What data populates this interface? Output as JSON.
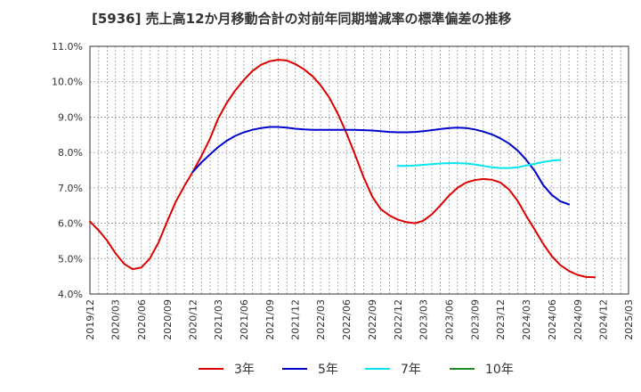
{
  "chart_data": {
    "type": "line",
    "title": "[5936]  売上高12か月移動合計の対前年同期増減率の標準偏差の推移",
    "ylim": [
      4.0,
      11.0
    ],
    "yticks": [
      "4.0%",
      "5.0%",
      "6.0%",
      "7.0%",
      "8.0%",
      "9.0%",
      "10.0%",
      "11.0%"
    ],
    "xticks": [
      "2019/12",
      "2020/03",
      "2020/06",
      "2020/09",
      "2020/12",
      "2021/03",
      "2021/06",
      "2021/09",
      "2021/12",
      "2022/03",
      "2022/06",
      "2022/09",
      "2022/12",
      "2023/03",
      "2023/06",
      "2023/09",
      "2023/12",
      "2024/03",
      "2024/06",
      "2024/09",
      "2024/12",
      "2025/03"
    ],
    "grid": true,
    "legend_position": "bottom",
    "series": [
      {
        "name": "3年",
        "color": "#dd0000",
        "points": [
          [
            "2019/12",
            6.05
          ],
          [
            "2020/01",
            5.8
          ],
          [
            "2020/02",
            5.5
          ],
          [
            "2020/03",
            5.15
          ],
          [
            "2020/04",
            4.85
          ],
          [
            "2020/05",
            4.7
          ],
          [
            "2020/06",
            4.75
          ],
          [
            "2020/07",
            5.0
          ],
          [
            "2020/08",
            5.45
          ],
          [
            "2020/09",
            6.05
          ],
          [
            "2020/10",
            6.6
          ],
          [
            "2020/11",
            7.05
          ],
          [
            "2020/12",
            7.45
          ],
          [
            "2021/01",
            7.9
          ],
          [
            "2021/02",
            8.4
          ],
          [
            "2021/03",
            8.95
          ],
          [
            "2021/04",
            9.4
          ],
          [
            "2021/05",
            9.75
          ],
          [
            "2021/06",
            10.05
          ],
          [
            "2021/07",
            10.3
          ],
          [
            "2021/08",
            10.48
          ],
          [
            "2021/09",
            10.58
          ],
          [
            "2021/10",
            10.62
          ],
          [
            "2021/11",
            10.6
          ],
          [
            "2021/12",
            10.5
          ],
          [
            "2022/01",
            10.35
          ],
          [
            "2022/02",
            10.15
          ],
          [
            "2022/03",
            9.9
          ],
          [
            "2022/04",
            9.55
          ],
          [
            "2022/05",
            9.1
          ],
          [
            "2022/06",
            8.55
          ],
          [
            "2022/07",
            7.95
          ],
          [
            "2022/08",
            7.3
          ],
          [
            "2022/09",
            6.75
          ],
          [
            "2022/10",
            6.4
          ],
          [
            "2022/11",
            6.22
          ],
          [
            "2022/12",
            6.1
          ],
          [
            "2023/01",
            6.03
          ],
          [
            "2023/02",
            6.0
          ],
          [
            "2023/03",
            6.07
          ],
          [
            "2023/04",
            6.25
          ],
          [
            "2023/05",
            6.5
          ],
          [
            "2023/06",
            6.78
          ],
          [
            "2023/07",
            7.0
          ],
          [
            "2023/08",
            7.15
          ],
          [
            "2023/09",
            7.22
          ],
          [
            "2023/10",
            7.25
          ],
          [
            "2023/11",
            7.23
          ],
          [
            "2023/12",
            7.15
          ],
          [
            "2024/01",
            6.95
          ],
          [
            "2024/02",
            6.62
          ],
          [
            "2024/03",
            6.22
          ],
          [
            "2024/04",
            5.82
          ],
          [
            "2024/05",
            5.42
          ],
          [
            "2024/06",
            5.07
          ],
          [
            "2024/07",
            4.82
          ],
          [
            "2024/08",
            4.65
          ],
          [
            "2024/09",
            4.54
          ],
          [
            "2024/10",
            4.48
          ],
          [
            "2024/11",
            4.47
          ]
        ]
      },
      {
        "name": "5年",
        "color": "#0000cc",
        "points": [
          [
            "2020/12",
            7.45
          ],
          [
            "2021/01",
            7.72
          ],
          [
            "2021/02",
            7.95
          ],
          [
            "2021/03",
            8.15
          ],
          [
            "2021/04",
            8.33
          ],
          [
            "2021/05",
            8.47
          ],
          [
            "2021/06",
            8.57
          ],
          [
            "2021/07",
            8.64
          ],
          [
            "2021/08",
            8.69
          ],
          [
            "2021/09",
            8.72
          ],
          [
            "2021/10",
            8.72
          ],
          [
            "2021/11",
            8.7
          ],
          [
            "2021/12",
            8.67
          ],
          [
            "2022/01",
            8.65
          ],
          [
            "2022/02",
            8.64
          ],
          [
            "2022/03",
            8.64
          ],
          [
            "2022/04",
            8.64
          ],
          [
            "2022/05",
            8.64
          ],
          [
            "2022/06",
            8.64
          ],
          [
            "2022/07",
            8.64
          ],
          [
            "2022/08",
            8.63
          ],
          [
            "2022/09",
            8.62
          ],
          [
            "2022/10",
            8.6
          ],
          [
            "2022/11",
            8.58
          ],
          [
            "2022/12",
            8.57
          ],
          [
            "2023/01",
            8.57
          ],
          [
            "2023/02",
            8.58
          ],
          [
            "2023/03",
            8.6
          ],
          [
            "2023/04",
            8.63
          ],
          [
            "2023/05",
            8.66
          ],
          [
            "2023/06",
            8.69
          ],
          [
            "2023/07",
            8.7
          ],
          [
            "2023/08",
            8.69
          ],
          [
            "2023/09",
            8.65
          ],
          [
            "2023/10",
            8.59
          ],
          [
            "2023/11",
            8.51
          ],
          [
            "2023/12",
            8.4
          ],
          [
            "2024/01",
            8.25
          ],
          [
            "2024/02",
            8.05
          ],
          [
            "2024/03",
            7.8
          ],
          [
            "2024/04",
            7.48
          ],
          [
            "2024/05",
            7.08
          ],
          [
            "2024/06",
            6.8
          ],
          [
            "2024/07",
            6.62
          ],
          [
            "2024/08",
            6.53
          ]
        ]
      },
      {
        "name": "7年",
        "color": "#00e5ee",
        "points": [
          [
            "2022/12",
            7.62
          ],
          [
            "2023/01",
            7.62
          ],
          [
            "2023/02",
            7.63
          ],
          [
            "2023/03",
            7.65
          ],
          [
            "2023/04",
            7.67
          ],
          [
            "2023/05",
            7.69
          ],
          [
            "2023/06",
            7.7
          ],
          [
            "2023/07",
            7.7
          ],
          [
            "2023/08",
            7.69
          ],
          [
            "2023/09",
            7.66
          ],
          [
            "2023/10",
            7.62
          ],
          [
            "2023/11",
            7.58
          ],
          [
            "2023/12",
            7.56
          ],
          [
            "2024/01",
            7.56
          ],
          [
            "2024/02",
            7.58
          ],
          [
            "2024/03",
            7.63
          ],
          [
            "2024/04",
            7.68
          ],
          [
            "2024/05",
            7.73
          ],
          [
            "2024/06",
            7.77
          ],
          [
            "2024/07",
            7.79
          ]
        ]
      },
      {
        "name": "10年",
        "color": "#228b22",
        "points": []
      }
    ]
  }
}
